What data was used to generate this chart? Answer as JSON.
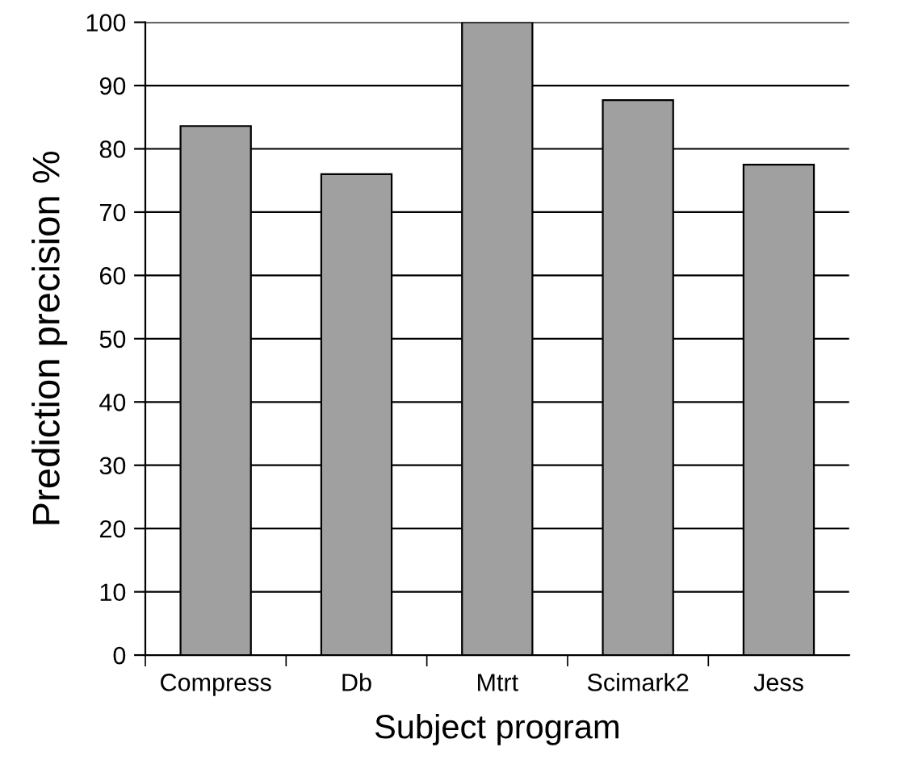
{
  "chart_data": {
    "type": "bar",
    "xlabel": "Subject program",
    "ylabel": "Prediction precision %",
    "categories": [
      "Compress",
      "Db",
      "Mtrt",
      "Scimark2",
      "Jess"
    ],
    "values": [
      83.6,
      76,
      100,
      87.7,
      77.5
    ],
    "color": "#a0a0a0",
    "ylim": [
      0,
      100
    ],
    "yticks": [
      0,
      10,
      20,
      30,
      40,
      50,
      60,
      70,
      80,
      90,
      100
    ],
    "grid": "y",
    "legend": false
  }
}
